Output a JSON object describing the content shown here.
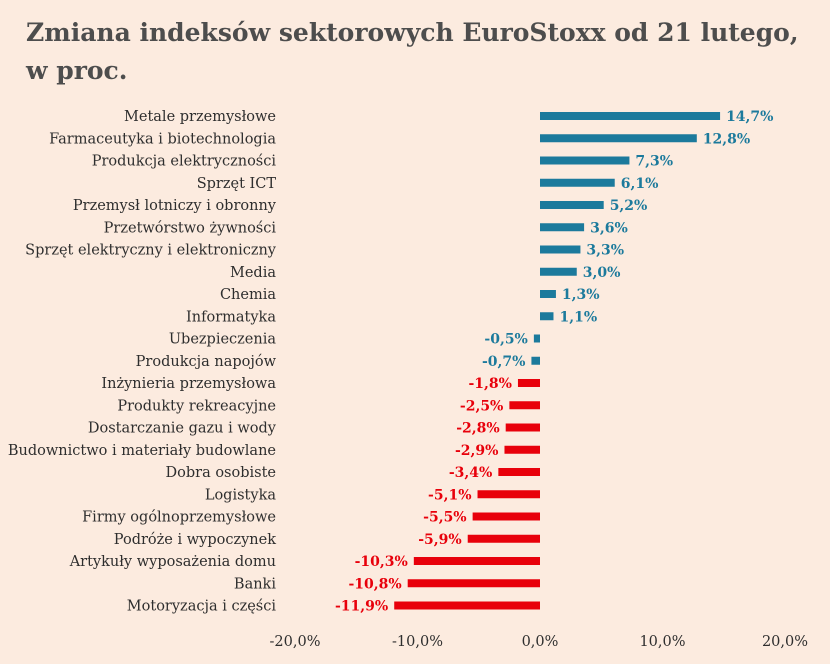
{
  "chart_data": {
    "type": "bar",
    "orientation": "horizontal",
    "title": "Zmiana indeksów sektorowych EuroStoxx od 21 lutego, w proc.",
    "xlabel": "",
    "ylabel": "",
    "xlim": [
      -20,
      20
    ],
    "xticks": [
      "-20,0%",
      "-10,0%",
      "0,0%",
      "10,0%",
      "20,0%"
    ],
    "grid": false,
    "legend": "none",
    "categories": [
      "Metale przemysłowe",
      "Farmaceutyka i biotechnologia",
      "Produkcja elektryczności",
      "Sprzęt ICT",
      "Przemysł lotniczy i obronny",
      "Przetwórstwo żywności",
      "Sprzęt elektryczny i elektroniczny",
      "Media",
      "Chemia",
      "Informatyka",
      "Ubezpieczenia",
      "Produkcja napojów",
      "Inżynieria przemysłowa",
      "Produkty rekreacyjne",
      "Dostarczanie gazu i wody",
      "Budownictwo i materiały budowlane",
      "Dobra osobiste",
      "Logistyka",
      "Firmy ogólnoprzemysłowe",
      "Podróże i wypoczynek",
      "Artykuły wyposażenia domu",
      "Banki",
      "Motoryzacja i części"
    ],
    "values": [
      14.7,
      12.8,
      7.3,
      6.1,
      5.2,
      3.6,
      3.3,
      3.0,
      1.3,
      1.1,
      -0.5,
      -0.7,
      -1.8,
      -2.5,
      -2.8,
      -2.9,
      -3.4,
      -5.1,
      -5.5,
      -5.9,
      -10.3,
      -10.8,
      -11.9
    ],
    "data_labels": [
      "14,7%",
      "12,8%",
      "7,3%",
      "6,1%",
      "5,2%",
      "3,6%",
      "3,3%",
      "3,0%",
      "1,3%",
      "1,1%",
      "-0,5%",
      "-0,7%",
      "-1,8%",
      "-2,5%",
      "-2,8%",
      "-2,9%",
      "-3,4%",
      "-5,1%",
      "-5,5%",
      "-5,9%",
      "-10,3%",
      "-10,8%",
      "-11,9%"
    ],
    "colors": {
      "positive": "#1c7a9c",
      "small_negative": "#1c7a9c",
      "negative": "#e8000b",
      "title": "#4d4d4d",
      "background": "#fcebdf"
    },
    "red_threshold": -1.0
  }
}
